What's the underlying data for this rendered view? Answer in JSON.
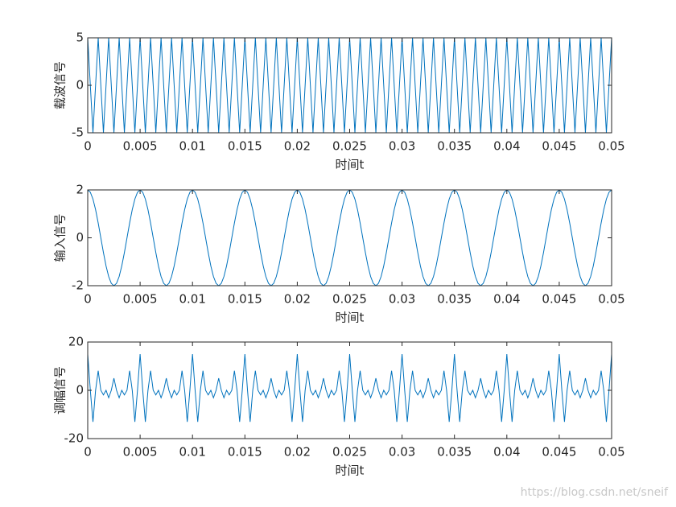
{
  "watermark": "https://blog.csdn.net/sneif",
  "chart_data": [
    {
      "type": "line",
      "ylabel": "载波信号",
      "xlabel": "时间t",
      "color": "#0072bd",
      "xlim": [
        0,
        0.05
      ],
      "ylim": [
        -5,
        5
      ],
      "xticks": [
        0,
        0.005,
        0.01,
        0.015,
        0.02,
        0.025,
        0.03,
        0.035,
        0.04,
        0.045,
        0.05
      ],
      "yticks": [
        -5,
        0,
        5
      ],
      "x": [
        0,
        0.00025,
        0.0005,
        0.00075,
        0.001,
        0.00125,
        0.0015,
        0.00175,
        0.002,
        0.00225,
        0.0025,
        0.00275,
        0.003,
        0.00325,
        0.0035,
        0.00375,
        0.004,
        0.00425,
        0.0045,
        0.00475,
        0.005,
        0.00525,
        0.0055,
        0.00575,
        0.006,
        0.00625,
        0.0065,
        0.00675,
        0.007,
        0.00725,
        0.0075,
        0.00775,
        0.008,
        0.00825,
        0.0085,
        0.00875,
        0.009,
        0.00925,
        0.0095,
        0.00975,
        0.01,
        0.01025,
        0.0105,
        0.01075,
        0.011,
        0.01125,
        0.0115,
        0.01175,
        0.012,
        0.01225,
        0.0125,
        0.01275,
        0.013,
        0.01325,
        0.0135,
        0.01375,
        0.014,
        0.01425,
        0.0145,
        0.01475,
        0.015,
        0.01525,
        0.0155,
        0.01575,
        0.016,
        0.01625,
        0.0165,
        0.01675,
        0.017,
        0.01725,
        0.0175,
        0.01775,
        0.018,
        0.01825,
        0.0185,
        0.01875,
        0.019,
        0.01925,
        0.0195,
        0.01975,
        0.02,
        0.02025,
        0.0205,
        0.02075,
        0.021,
        0.02125,
        0.0215,
        0.02175,
        0.022,
        0.02225,
        0.0225,
        0.02275,
        0.023,
        0.02325,
        0.0235,
        0.02375,
        0.024,
        0.02425,
        0.0245,
        0.02475,
        0.025,
        0.02525,
        0.0255,
        0.02575,
        0.026,
        0.02625,
        0.0265,
        0.02675,
        0.027,
        0.02725,
        0.0275,
        0.02775,
        0.028,
        0.02825,
        0.0285,
        0.02875,
        0.029,
        0.02925,
        0.0295,
        0.02975,
        0.03,
        0.03025,
        0.0305,
        0.03075,
        0.031,
        0.03125,
        0.0315,
        0.03175,
        0.032,
        0.03225,
        0.0325,
        0.03275,
        0.033,
        0.03325,
        0.0335,
        0.03375,
        0.034,
        0.03425,
        0.0345,
        0.03475,
        0.035,
        0.03525,
        0.0355,
        0.03575,
        0.036,
        0.03625,
        0.0365,
        0.03675,
        0.037,
        0.03725,
        0.0375,
        0.03775,
        0.038,
        0.03825,
        0.0385,
        0.03875,
        0.039,
        0.03925,
        0.0395,
        0.03975,
        0.04,
        0.04025,
        0.0405,
        0.04075,
        0.041,
        0.04125,
        0.0415,
        0.04175,
        0.042,
        0.04225,
        0.0425,
        0.04275,
        0.043,
        0.04325,
        0.0435,
        0.04375,
        0.044,
        0.04425,
        0.0445,
        0.04475,
        0.045,
        0.04525,
        0.0455,
        0.04575,
        0.046,
        0.04625,
        0.0465,
        0.04675,
        0.047,
        0.04725,
        0.0475,
        0.04775,
        0.048,
        0.04825,
        0.0485,
        0.04875,
        0.049,
        0.04925,
        0.0495,
        0.04975,
        0.05
      ],
      "values": [
        5,
        0,
        -5,
        0,
        5,
        0,
        -5,
        0,
        5,
        0,
        -5,
        0,
        5,
        0,
        -5,
        0,
        5,
        0,
        -5,
        0,
        5,
        0,
        -5,
        0,
        5,
        0,
        -5,
        0,
        5,
        0,
        -5,
        0,
        5,
        0,
        -5,
        0,
        5,
        0,
        -5,
        0,
        5,
        0,
        -5,
        0,
        5,
        0,
        -5,
        0,
        5,
        0,
        -5,
        0,
        5,
        0,
        -5,
        0,
        5,
        0,
        -5,
        0,
        5,
        0,
        -5,
        0,
        5,
        0,
        -5,
        0,
        5,
        0,
        -5,
        0,
        5,
        0,
        -5,
        0,
        5,
        0,
        -5,
        0,
        5,
        0,
        -5,
        0,
        5,
        0,
        -5,
        0,
        5,
        0,
        -5,
        0,
        5,
        0,
        -5,
        0,
        5,
        0,
        -5,
        0,
        5,
        0,
        -5,
        0,
        5,
        0,
        -5,
        0,
        5,
        0,
        -5,
        0,
        5,
        0,
        -5,
        0,
        5,
        0,
        -5,
        0,
        5,
        0,
        -5,
        0,
        5,
        0,
        -5,
        0,
        5,
        0,
        -5,
        0,
        5,
        0,
        -5,
        0,
        5,
        0,
        -5,
        0,
        5,
        0,
        -5,
        0,
        5,
        0,
        -5,
        0,
        5,
        0,
        -5,
        0,
        5,
        0,
        -5,
        0,
        5,
        0,
        -5,
        0,
        5,
        0,
        -5,
        0,
        5,
        0,
        -5,
        0,
        5,
        0,
        -5,
        0,
        5,
        0,
        -5,
        0,
        5,
        0,
        -5,
        0,
        5,
        0,
        -5,
        0,
        5,
        0,
        -5,
        0,
        5,
        0,
        -5,
        0,
        5,
        0,
        -5,
        0,
        5,
        0,
        -5,
        0,
        5
      ]
    },
    {
      "type": "line",
      "ylabel": "输入信号",
      "xlabel": "时间t",
      "color": "#0072bd",
      "xlim": [
        0,
        0.05
      ],
      "ylim": [
        -2,
        2
      ],
      "xticks": [
        0,
        0.005,
        0.01,
        0.015,
        0.02,
        0.025,
        0.03,
        0.035,
        0.04,
        0.045,
        0.05
      ],
      "yticks": [
        -2,
        0,
        2
      ],
      "x": [
        0,
        0.00025,
        0.0005,
        0.00075,
        0.001,
        0.00125,
        0.0015,
        0.00175,
        0.002,
        0.00225,
        0.0025,
        0.00275,
        0.003,
        0.00325,
        0.0035,
        0.00375,
        0.004,
        0.00425,
        0.0045,
        0.00475,
        0.005,
        0.00525,
        0.0055,
        0.00575,
        0.006,
        0.00625,
        0.0065,
        0.00675,
        0.007,
        0.00725,
        0.0075,
        0.00775,
        0.008,
        0.00825,
        0.0085,
        0.00875,
        0.009,
        0.00925,
        0.0095,
        0.00975,
        0.01,
        0.01025,
        0.0105,
        0.01075,
        0.011,
        0.01125,
        0.0115,
        0.01175,
        0.012,
        0.01225,
        0.0125,
        0.01275,
        0.013,
        0.01325,
        0.0135,
        0.01375,
        0.014,
        0.01425,
        0.0145,
        0.01475,
        0.015,
        0.01525,
        0.0155,
        0.01575,
        0.016,
        0.01625,
        0.0165,
        0.01675,
        0.017,
        0.01725,
        0.0175,
        0.01775,
        0.018,
        0.01825,
        0.0185,
        0.01875,
        0.019,
        0.01925,
        0.0195,
        0.01975,
        0.02,
        0.02025,
        0.0205,
        0.02075,
        0.021,
        0.02125,
        0.0215,
        0.02175,
        0.022,
        0.02225,
        0.0225,
        0.02275,
        0.023,
        0.02325,
        0.0235,
        0.02375,
        0.024,
        0.02425,
        0.0245,
        0.02475,
        0.025,
        0.02525,
        0.0255,
        0.02575,
        0.026,
        0.02625,
        0.0265,
        0.02675,
        0.027,
        0.02725,
        0.0275,
        0.02775,
        0.028,
        0.02825,
        0.0285,
        0.02875,
        0.029,
        0.02925,
        0.0295,
        0.02975,
        0.03,
        0.03025,
        0.0305,
        0.03075,
        0.031,
        0.03125,
        0.0315,
        0.03175,
        0.032,
        0.03225,
        0.0325,
        0.03275,
        0.033,
        0.03325,
        0.0335,
        0.03375,
        0.034,
        0.03425,
        0.0345,
        0.03475,
        0.035,
        0.03525,
        0.0355,
        0.03575,
        0.036,
        0.03625,
        0.0365,
        0.03675,
        0.037,
        0.03725,
        0.0375,
        0.03775,
        0.038,
        0.03825,
        0.0385,
        0.03875,
        0.039,
        0.03925,
        0.0395,
        0.03975,
        0.04,
        0.04025,
        0.0405,
        0.04075,
        0.041,
        0.04125,
        0.0415,
        0.04175,
        0.042,
        0.04225,
        0.0425,
        0.04275,
        0.043,
        0.04325,
        0.0435,
        0.04375,
        0.044,
        0.04425,
        0.0445,
        0.04475,
        0.045,
        0.04525,
        0.0455,
        0.04575,
        0.046,
        0.04625,
        0.0465,
        0.04675,
        0.047,
        0.04725,
        0.0475,
        0.04775,
        0.048,
        0.04825,
        0.0485,
        0.04875,
        0.049,
        0.04925,
        0.0495,
        0.04975,
        0.05
      ],
      "values": [
        2,
        1.902,
        1.618,
        1.176,
        0.618,
        0,
        -0.618,
        -1.176,
        -1.618,
        -1.902,
        -2,
        -1.902,
        -1.618,
        -1.176,
        -0.618,
        0,
        0.618,
        1.176,
        1.618,
        1.902,
        2,
        1.902,
        1.618,
        1.176,
        0.618,
        0,
        -0.618,
        -1.176,
        -1.618,
        -1.902,
        -2,
        -1.902,
        -1.618,
        -1.176,
        -0.618,
        0,
        0.618,
        1.176,
        1.618,
        1.902,
        2,
        1.902,
        1.618,
        1.176,
        0.618,
        0,
        -0.618,
        -1.176,
        -1.618,
        -1.902,
        -2,
        -1.902,
        -1.618,
        -1.176,
        -0.618,
        0,
        0.618,
        1.176,
        1.618,
        1.902,
        2,
        1.902,
        1.618,
        1.176,
        0.618,
        0,
        -0.618,
        -1.176,
        -1.618,
        -1.902,
        -2,
        -1.902,
        -1.618,
        -1.176,
        -0.618,
        0,
        0.618,
        1.176,
        1.618,
        1.902,
        2,
        1.902,
        1.618,
        1.176,
        0.618,
        0,
        -0.618,
        -1.176,
        -1.618,
        -1.902,
        -2,
        -1.902,
        -1.618,
        -1.176,
        -0.618,
        0,
        0.618,
        1.176,
        1.618,
        1.902,
        2,
        1.902,
        1.618,
        1.176,
        0.618,
        0,
        -0.618,
        -1.176,
        -1.618,
        -1.902,
        -2,
        -1.902,
        -1.618,
        -1.176,
        -0.618,
        0,
        0.618,
        1.176,
        1.618,
        1.902,
        2,
        1.902,
        1.618,
        1.176,
        0.618,
        0,
        -0.618,
        -1.176,
        -1.618,
        -1.902,
        -2,
        -1.902,
        -1.618,
        -1.176,
        -0.618,
        0,
        0.618,
        1.176,
        1.618,
        1.902,
        2,
        1.902,
        1.618,
        1.176,
        0.618,
        0,
        -0.618,
        -1.176,
        -1.618,
        -1.902,
        -2,
        -1.902,
        -1.618,
        -1.176,
        -0.618,
        0,
        0.618,
        1.176,
        1.618,
        1.902,
        2,
        1.902,
        1.618,
        1.176,
        0.618,
        0,
        -0.618,
        -1.176,
        -1.618,
        -1.902,
        -2,
        -1.902,
        -1.618,
        -1.176,
        -0.618,
        0,
        0.618,
        1.176,
        1.618,
        1.902,
        2,
        1.902,
        1.618,
        1.176,
        0.618,
        0,
        -0.618,
        -1.176,
        -1.618,
        -1.902,
        -2,
        -1.902,
        -1.618,
        -1.176,
        -0.618,
        0,
        0.618,
        1.176,
        1.618,
        1.902,
        2
      ]
    },
    {
      "type": "line",
      "ylabel": "调幅信号",
      "xlabel": "时间t",
      "color": "#0072bd",
      "xlim": [
        0,
        0.05
      ],
      "ylim": [
        -20,
        20
      ],
      "xticks": [
        0,
        0.005,
        0.01,
        0.015,
        0.02,
        0.025,
        0.03,
        0.035,
        0.04,
        0.045,
        0.05
      ],
      "yticks": [
        -20,
        0,
        20
      ],
      "x": [
        0,
        0.00025,
        0.0005,
        0.00075,
        0.001,
        0.00125,
        0.0015,
        0.00175,
        0.002,
        0.00225,
        0.0025,
        0.00275,
        0.003,
        0.00325,
        0.0035,
        0.00375,
        0.004,
        0.00425,
        0.0045,
        0.00475,
        0.005,
        0.00525,
        0.0055,
        0.00575,
        0.006,
        0.00625,
        0.0065,
        0.00675,
        0.007,
        0.00725,
        0.0075,
        0.00775,
        0.008,
        0.00825,
        0.0085,
        0.00875,
        0.009,
        0.00925,
        0.0095,
        0.00975,
        0.01,
        0.01025,
        0.0105,
        0.01075,
        0.011,
        0.01125,
        0.0115,
        0.01175,
        0.012,
        0.01225,
        0.0125,
        0.01275,
        0.013,
        0.01325,
        0.0135,
        0.01375,
        0.014,
        0.01425,
        0.0145,
        0.01475,
        0.015,
        0.01525,
        0.0155,
        0.01575,
        0.016,
        0.01625,
        0.0165,
        0.01675,
        0.017,
        0.01725,
        0.0175,
        0.01775,
        0.018,
        0.01825,
        0.0185,
        0.01875,
        0.019,
        0.01925,
        0.0195,
        0.01975,
        0.02,
        0.02025,
        0.0205,
        0.02075,
        0.021,
        0.02125,
        0.0215,
        0.02175,
        0.022,
        0.02225,
        0.0225,
        0.02275,
        0.023,
        0.02325,
        0.0235,
        0.02375,
        0.024,
        0.02425,
        0.0245,
        0.02475,
        0.025,
        0.02525,
        0.0255,
        0.02575,
        0.026,
        0.02625,
        0.0265,
        0.02675,
        0.027,
        0.02725,
        0.0275,
        0.02775,
        0.028,
        0.02825,
        0.0285,
        0.02875,
        0.029,
        0.02925,
        0.0295,
        0.02975,
        0.03,
        0.03025,
        0.0305,
        0.03075,
        0.031,
        0.03125,
        0.0315,
        0.03175,
        0.032,
        0.03225,
        0.0325,
        0.03275,
        0.033,
        0.03325,
        0.0335,
        0.03375,
        0.034,
        0.03425,
        0.0345,
        0.03475,
        0.035,
        0.03525,
        0.0355,
        0.03575,
        0.036,
        0.03625,
        0.0365,
        0.03675,
        0.037,
        0.03725,
        0.0375,
        0.03775,
        0.038,
        0.03825,
        0.0385,
        0.03875,
        0.039,
        0.03925,
        0.0395,
        0.03975,
        0.04,
        0.04025,
        0.0405,
        0.04075,
        0.041,
        0.04125,
        0.0415,
        0.04175,
        0.042,
        0.04225,
        0.0425,
        0.04275,
        0.043,
        0.04325,
        0.0435,
        0.04375,
        0.044,
        0.04425,
        0.0445,
        0.04475,
        0.045,
        0.04525,
        0.0455,
        0.04575,
        0.046,
        0.04625,
        0.0465,
        0.04675,
        0.047,
        0.04725,
        0.0475,
        0.04775,
        0.048,
        0.04825,
        0.0485,
        0.04875,
        0.049,
        0.04925,
        0.0495,
        0.04975,
        0.05
      ],
      "values": [
        15,
        0,
        -13.09,
        0,
        8.09,
        0,
        -1.91,
        0,
        -3.09,
        0,
        5,
        0,
        -3.09,
        0,
        -1.91,
        0,
        8.09,
        0,
        -13.09,
        0,
        15,
        0,
        -13.09,
        0,
        8.09,
        0,
        -1.91,
        0,
        -3.09,
        0,
        5,
        0,
        -3.09,
        0,
        -1.91,
        0,
        8.09,
        0,
        -13.09,
        0,
        15,
        0,
        -13.09,
        0,
        8.09,
        0,
        -1.91,
        0,
        -3.09,
        0,
        5,
        0,
        -3.09,
        0,
        -1.91,
        0,
        8.09,
        0,
        -13.09,
        0,
        15,
        0,
        -13.09,
        0,
        8.09,
        0,
        -1.91,
        0,
        -3.09,
        0,
        5,
        0,
        -3.09,
        0,
        -1.91,
        0,
        8.09,
        0,
        -13.09,
        0,
        15,
        0,
        -13.09,
        0,
        8.09,
        0,
        -1.91,
        0,
        -3.09,
        0,
        5,
        0,
        -3.09,
        0,
        -1.91,
        0,
        8.09,
        0,
        -13.09,
        0,
        15,
        0,
        -13.09,
        0,
        8.09,
        0,
        -1.91,
        0,
        -3.09,
        0,
        5,
        0,
        -3.09,
        0,
        -1.91,
        0,
        8.09,
        0,
        -13.09,
        0,
        15,
        0,
        -13.09,
        0,
        8.09,
        0,
        -1.91,
        0,
        -3.09,
        0,
        5,
        0,
        -3.09,
        0,
        -1.91,
        0,
        8.09,
        0,
        -13.09,
        0,
        15,
        0,
        -13.09,
        0,
        8.09,
        0,
        -1.91,
        0,
        -3.09,
        0,
        5,
        0,
        -3.09,
        0,
        -1.91,
        0,
        8.09,
        0,
        -13.09,
        0,
        15,
        0,
        -13.09,
        0,
        8.09,
        0,
        -1.91,
        0,
        -3.09,
        0,
        5,
        0,
        -3.09,
        0,
        -1.91,
        0,
        8.09,
        0,
        -13.09,
        0,
        15,
        0,
        -13.09,
        0,
        8.09,
        0,
        -1.91,
        0,
        -3.09,
        0,
        5,
        0,
        -3.09,
        0,
        -1.91,
        0,
        8.09,
        0,
        -13.09,
        0,
        15
      ]
    }
  ]
}
